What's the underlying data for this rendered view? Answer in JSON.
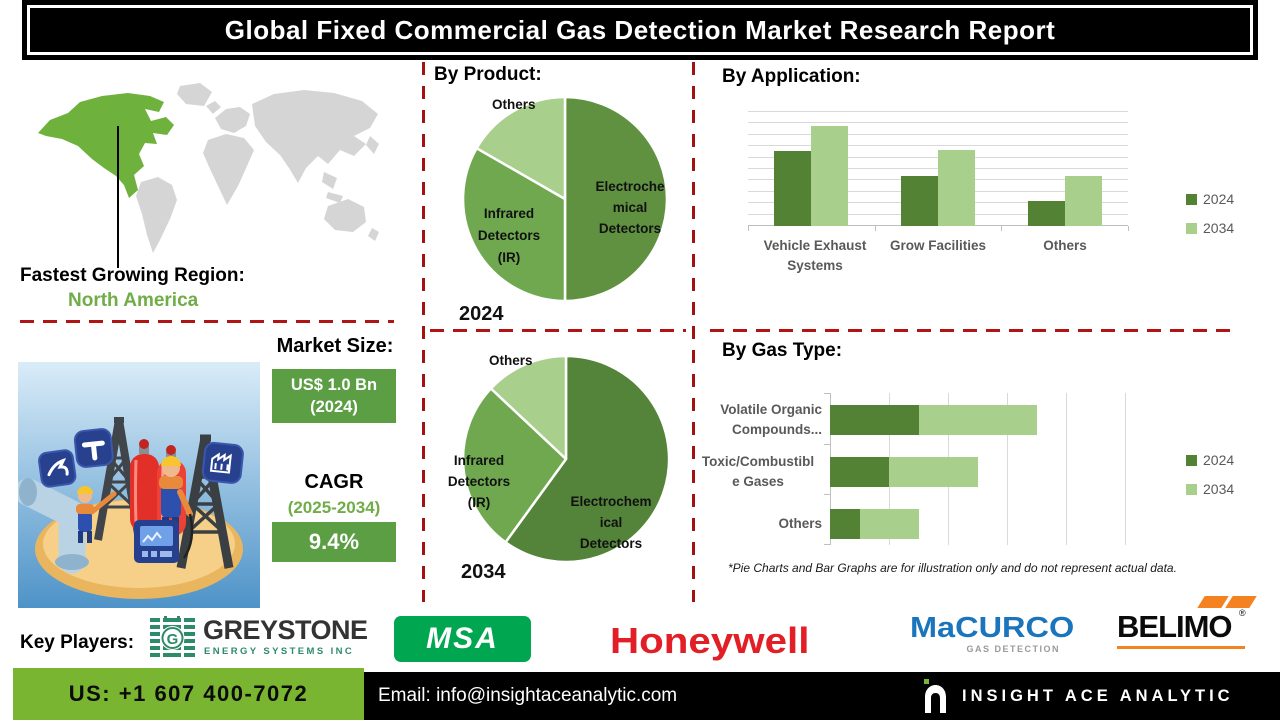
{
  "title": "Global Fixed Commercial Gas Detection Market Research Report",
  "region": {
    "heading": "Fastest Growing Region:",
    "name": "North America"
  },
  "market": {
    "size_heading": "Market Size:",
    "size_value": "US$ 1.0 Bn",
    "size_year": "(2024)",
    "cagr_heading": "CAGR",
    "cagr_period": "(2025-2034)",
    "cagr_value": "9.4%"
  },
  "by_product": {
    "heading": "By Product:",
    "pie_2024": {
      "year_label": "2024",
      "others": "Others",
      "infrared_lines": [
        "Infrared",
        "Detectors",
        "(IR)"
      ],
      "electro_lines": [
        "Electroche",
        "mical",
        "Detectors"
      ]
    },
    "pie_2034": {
      "year_label": "2034",
      "others": "Others",
      "infrared_lines": [
        "Infrared",
        "Detectors",
        "(IR)"
      ],
      "electro_lines": [
        "Electrochem",
        "ical",
        "Detectors"
      ]
    }
  },
  "by_application": {
    "heading": "By Application:",
    "categories_lines": [
      [
        "Vehicle Exhaust",
        "Systems"
      ],
      [
        "Grow Facilities"
      ],
      [
        "Others"
      ]
    ]
  },
  "by_gas_type": {
    "heading": "By Gas Type:",
    "categories_lines": [
      [
        "Volatile Organic",
        "Compounds..."
      ],
      [
        "Toxic/Combustibl",
        "e Gases"
      ],
      [
        "Others"
      ]
    ],
    "disclaimer": "*Pie Charts and Bar Graphs are for illustration only and do not represent actual data."
  },
  "key_players": {
    "heading": "Key Players:",
    "greystone": {
      "name": "GREYSTONE",
      "subtitle": "ENERGY SYSTEMS INC",
      "monogram": "G"
    },
    "msa": {
      "name": "MSA"
    },
    "honeywell": {
      "name": "Honeywell"
    },
    "macurco": {
      "name": "MaCURCO",
      "subtitle": "GAS DETECTION"
    },
    "belimo": {
      "name": "BELIMO",
      "registered": "®"
    }
  },
  "footer": {
    "phone": "US: +1 607 400-7072",
    "email": "Email: info@insightaceanalytic.com",
    "brand": "INSIGHT ACE ANALYTIC"
  },
  "colors": {
    "dark_green": "#548235",
    "mid_green": "#6FA84F",
    "light_green": "#A9CF8D",
    "accent_green": "#70AD47",
    "map_green": "#6FB13D",
    "box_green": "#5B9E44",
    "footer_green": "#79B530",
    "dash_red": "#B01414",
    "msa_green": "#00A650",
    "honeywell_red": "#E21E26",
    "macurco_blue": "#1B75BC",
    "belimo_orange": "#F58220",
    "greystone_green": "#2E8B6A"
  },
  "chart_data": [
    {
      "type": "pie",
      "title": "By Product:",
      "year": "2024",
      "labels": [
        "Electrochemical Detectors",
        "Infrared Detectors (IR)",
        "Others"
      ],
      "values": [
        50,
        33.3,
        16.7
      ],
      "colors": [
        "#5F9141",
        "#6FA84F",
        "#A9CF8D"
      ],
      "note": "illustration only"
    },
    {
      "type": "pie",
      "title": "By Product:",
      "year": "2034",
      "labels": [
        "Electrochemical Detectors",
        "Infrared Detectors (IR)",
        "Others"
      ],
      "values": [
        60,
        27,
        13
      ],
      "colors": [
        "#54833A",
        "#6FA84F",
        "#A9CF8D"
      ],
      "note": "illustration only"
    },
    {
      "type": "bar",
      "title": "By Application:",
      "categories": [
        "Vehicle Exhaust Systems",
        "Grow Facilities",
        "Others"
      ],
      "series": [
        {
          "name": "2024",
          "color": "#548235",
          "values": [
            66,
            44,
            22
          ]
        },
        {
          "name": "2034",
          "color": "#A9CF8D",
          "values": [
            88,
            67,
            44
          ]
        }
      ],
      "ylim": [
        0,
        100
      ],
      "gridline_step": 10,
      "legend_position": "right",
      "note": "illustration only"
    },
    {
      "type": "stacked-bar-horizontal",
      "title": "By Gas Type:",
      "categories": [
        "Volatile Organic Compounds...",
        "Toxic/Combustible Gases",
        "Others"
      ],
      "series": [
        {
          "name": "2024",
          "color": "#548235",
          "values": [
            1.5,
            1.0,
            0.5
          ]
        },
        {
          "name": "2034",
          "color": "#A9CF8D",
          "values": [
            2.0,
            1.5,
            1.0
          ]
        }
      ],
      "xlim": [
        0,
        5
      ],
      "gridline_step": 1,
      "legend_position": "right",
      "note": "illustration only"
    }
  ]
}
